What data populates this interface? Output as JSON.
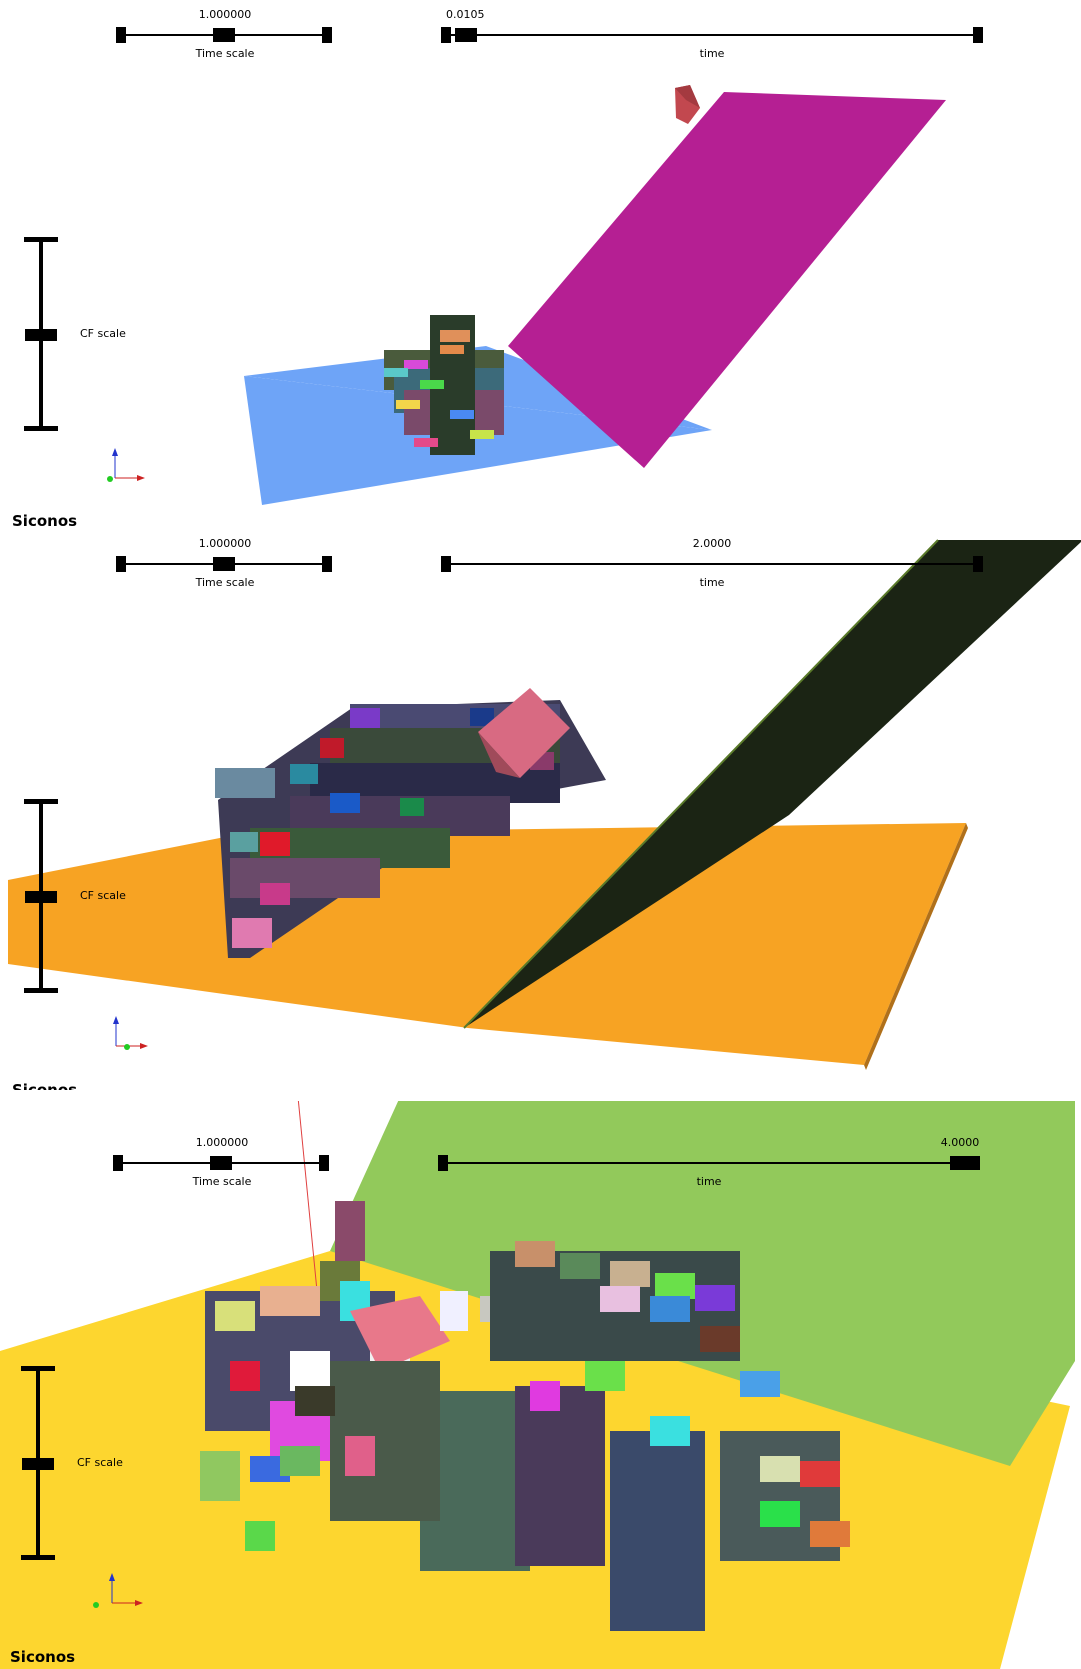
{
  "panels": [
    {
      "time_scale": {
        "value": "1.000000",
        "label": "Time scale"
      },
      "time": {
        "value": "0.0105",
        "label": "time"
      },
      "cf_scale": {
        "label": "CF scale"
      },
      "brand": "Siconos",
      "colors": {
        "ground": "#6ea4f7",
        "ramp": "#b51f93"
      }
    },
    {
      "time_scale": {
        "value": "1.000000",
        "label": "Time scale"
      },
      "time": {
        "value": "2.0000",
        "label": "time"
      },
      "cf_scale": {
        "label": "CF scale"
      },
      "brand": "Siconos",
      "colors": {
        "ground": "#f7a323",
        "ramp": "#1b2414"
      }
    },
    {
      "time_scale": {
        "value": "1.000000",
        "label": "Time scale"
      },
      "time": {
        "value": "4.0000",
        "label": "time"
      },
      "cf_scale": {
        "label": "CF scale"
      },
      "brand": "Siconos",
      "colors": {
        "ground": "#fdd62f",
        "ramp": "#92c95b"
      }
    }
  ]
}
